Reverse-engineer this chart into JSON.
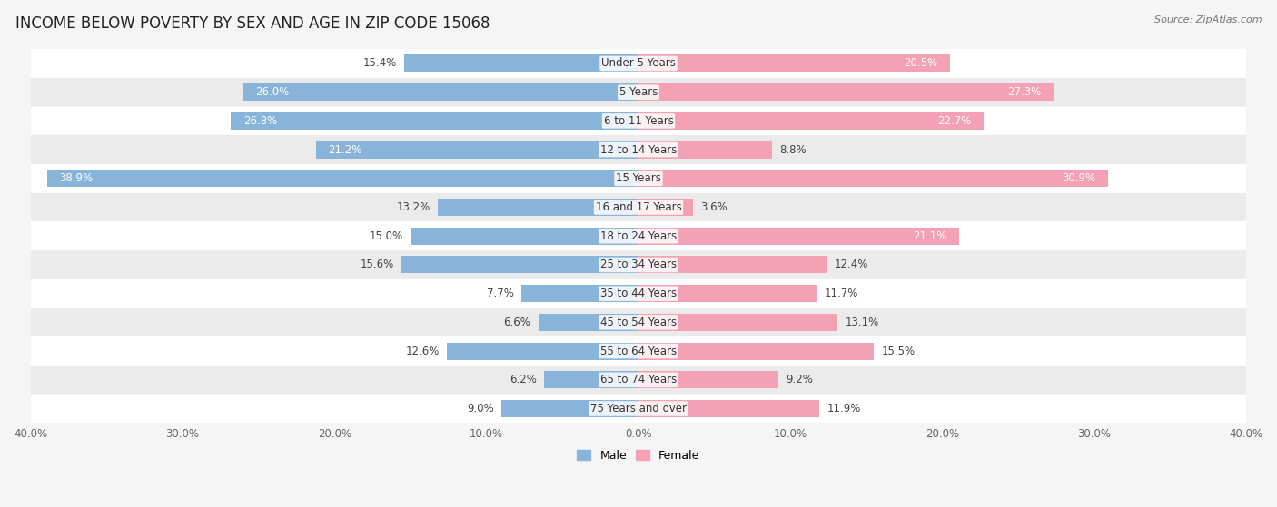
{
  "title": "INCOME BELOW POVERTY BY SEX AND AGE IN ZIP CODE 15068",
  "source": "Source: ZipAtlas.com",
  "categories": [
    "Under 5 Years",
    "5 Years",
    "6 to 11 Years",
    "12 to 14 Years",
    "15 Years",
    "16 and 17 Years",
    "18 to 24 Years",
    "25 to 34 Years",
    "35 to 44 Years",
    "45 to 54 Years",
    "55 to 64 Years",
    "65 to 74 Years",
    "75 Years and over"
  ],
  "male": [
    15.4,
    26.0,
    26.8,
    21.2,
    38.9,
    13.2,
    15.0,
    15.6,
    7.7,
    6.6,
    12.6,
    6.2,
    9.0
  ],
  "female": [
    20.5,
    27.3,
    22.7,
    8.8,
    30.9,
    3.6,
    21.1,
    12.4,
    11.7,
    13.1,
    15.5,
    9.2,
    11.9
  ],
  "male_color": "#89b4d9",
  "female_color": "#f4a0b5",
  "male_label": "Male",
  "female_label": "Female",
  "x_max": 40.0,
  "bar_height": 0.6,
  "bg_color": "#f5f5f5",
  "row_colors": [
    "#ffffff",
    "#ebebeb"
  ],
  "title_fontsize": 12,
  "label_fontsize": 8.5,
  "tick_fontsize": 8.5,
  "source_fontsize": 8,
  "inside_label_threshold": 18
}
